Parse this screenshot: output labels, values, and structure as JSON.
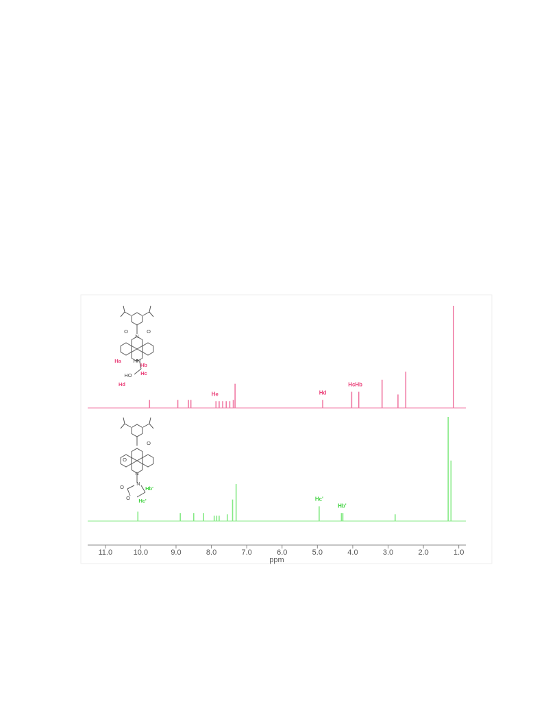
{
  "chart_data": {
    "type": "spectrum",
    "x_label": "ppm",
    "xlim": [
      11.5,
      0.8
    ],
    "xticks": [
      {
        "value": 11,
        "label": "11.0"
      },
      {
        "value": 10,
        "label": "10.0"
      },
      {
        "value": 9,
        "label": "9.0"
      },
      {
        "value": 8,
        "label": "8.0"
      },
      {
        "value": 7,
        "label": "7.0"
      },
      {
        "value": 6,
        "label": "6.0"
      },
      {
        "value": 5,
        "label": "5.0"
      },
      {
        "value": 4,
        "label": "4.0"
      },
      {
        "value": 3,
        "label": "3.0"
      },
      {
        "value": 2,
        "label": "2.0"
      },
      {
        "value": 1,
        "label": "1.0"
      }
    ],
    "series": [
      {
        "color": "#f07aa4",
        "label_color": "#ea3f78",
        "x": [
          9.75,
          8.95,
          8.65,
          8.58,
          7.87,
          7.78,
          7.68,
          7.58,
          7.48,
          7.38,
          7.33,
          4.85,
          4.03,
          3.83,
          3.17,
          2.72,
          2.5,
          1.15
        ],
        "values": [
          12,
          12,
          12,
          12,
          10,
          10,
          10,
          10,
          10,
          12,
          36,
          12,
          24,
          24,
          42,
          20,
          54,
          152
        ],
        "annotations": [
          {
            "text": "He",
            "x": 7.9
          },
          {
            "text": "Hd",
            "x": 4.85
          },
          {
            "text": "Hc",
            "x": 4.03
          },
          {
            "text": "Hb",
            "x": 3.83
          }
        ],
        "structure_texts": [
          "O",
          "N",
          "O",
          "HN",
          "HO",
          "Ha",
          "Hb",
          "Hc",
          "Hd"
        ]
      },
      {
        "color": "#86ea86",
        "label_color": "#3fd23f",
        "x": [
          10.08,
          8.88,
          8.5,
          8.22,
          7.92,
          7.85,
          7.78,
          7.55,
          7.4,
          7.3,
          4.95,
          4.32,
          4.28,
          2.8,
          1.3,
          1.22
        ],
        "values": [
          14,
          12,
          12,
          12,
          8,
          8,
          8,
          10,
          32,
          55,
          22,
          12,
          12,
          10,
          155,
          90
        ],
        "annotations": [
          {
            "text": "Hc'",
            "x": 4.95
          },
          {
            "text": "Hb'",
            "x": 4.3
          }
        ],
        "structure_texts": [
          "O",
          "N",
          "O",
          "N",
          "O",
          "O",
          "Hb'",
          "Hc'"
        ]
      }
    ]
  }
}
